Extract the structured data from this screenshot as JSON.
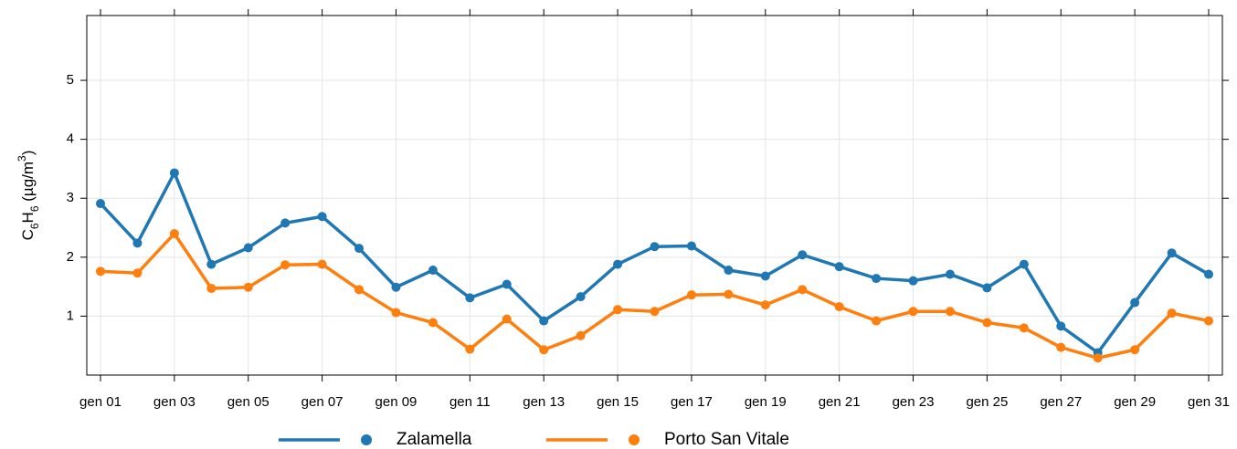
{
  "chart_data": {
    "type": "line",
    "y_label": [
      "C",
      "6",
      "H",
      "6",
      " (µg/m",
      "3",
      ")"
    ],
    "categories": [
      "gen 01",
      null,
      "gen 03",
      null,
      "gen 05",
      null,
      "gen 07",
      null,
      "gen 09",
      null,
      "gen 11",
      null,
      "gen 13",
      null,
      "gen 15",
      null,
      "gen 17",
      null,
      "gen 19",
      null,
      "gen 21",
      null,
      "gen 23",
      null,
      "gen 25",
      null,
      "gen 27",
      null,
      "gen 29",
      null,
      "gen 31"
    ],
    "series": [
      {
        "name": "Zalamella",
        "color": "#1f77b4",
        "values": [
          2.91,
          2.24,
          3.43,
          1.88,
          2.16,
          2.58,
          2.69,
          2.15,
          1.49,
          1.78,
          1.31,
          1.54,
          0.92,
          1.33,
          1.88,
          2.18,
          2.19,
          1.78,
          1.68,
          2.04,
          1.84,
          1.64,
          1.6,
          1.71,
          1.48,
          1.88,
          0.83,
          0.38,
          1.23,
          2.07,
          1.71
        ]
      },
      {
        "name": "Porto San Vitale",
        "color": "#ff7f0e",
        "values": [
          1.76,
          1.73,
          2.4,
          1.47,
          1.49,
          1.87,
          1.88,
          1.45,
          1.06,
          0.89,
          0.44,
          0.95,
          0.43,
          0.67,
          1.11,
          1.08,
          1.36,
          1.37,
          1.19,
          1.45,
          1.16,
          0.92,
          1.08,
          1.08,
          0.89,
          0.8,
          0.47,
          0.29,
          0.43,
          1.05,
          0.92
        ]
      }
    ],
    "ylim": [
      0,
      6.1
    ],
    "yticks": [
      1,
      2,
      3,
      4,
      5
    ],
    "grid": true
  }
}
